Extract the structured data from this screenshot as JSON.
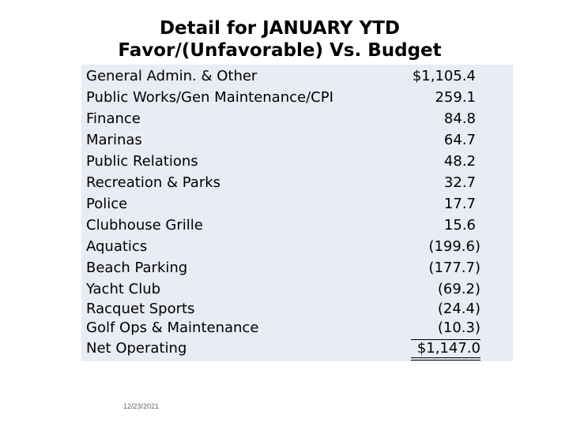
{
  "title": {
    "line1": "Detail for JANUARY YTD",
    "line2": "Favor/(Unfavorable) Vs. Budget"
  },
  "rows": [
    {
      "label": "General Admin. & Other",
      "value": "$1,105.4"
    },
    {
      "label": "Public Works/Gen Maintenance/CPI",
      "value": "259.1"
    },
    {
      "label": "Finance",
      "value": "84.8"
    },
    {
      "label": "Marinas",
      "value": "64.7"
    },
    {
      "label": "Public Relations",
      "value": "48.2"
    },
    {
      "label": "Recreation & Parks",
      "value": "32.7"
    },
    {
      "label": "Police",
      "value": "17.7"
    },
    {
      "label": "Clubhouse Grille",
      "value": "15.6"
    },
    {
      "label": "Aquatics",
      "value": "(199.6)"
    },
    {
      "label": "Beach Parking",
      "value": "(177.7)"
    },
    {
      "label": "Yacht Club",
      "value": "(69.2)"
    },
    {
      "label": "Racquet Sports",
      "value": "(24.4)"
    },
    {
      "label": "Golf Ops & Maintenance",
      "value": "(10.3)"
    },
    {
      "label": "Net Operating",
      "value": "$1,147.0"
    }
  ],
  "footer": {
    "date": "12/23/2021"
  },
  "colors": {
    "table_background": "#e9ebf5",
    "text": "#000000"
  }
}
